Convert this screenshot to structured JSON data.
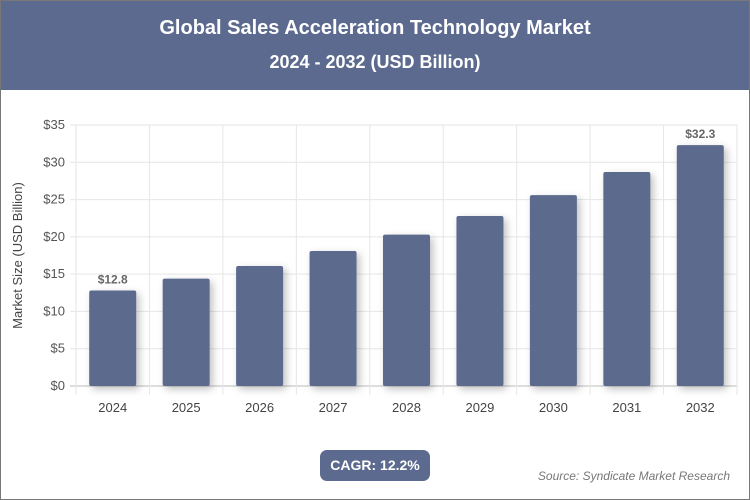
{
  "header": {
    "title": "Global Sales Acceleration Technology Market",
    "subtitle": "2024 - 2032 (USD Billion)"
  },
  "chart_data": {
    "type": "bar",
    "categories": [
      "2024",
      "2025",
      "2026",
      "2027",
      "2028",
      "2029",
      "2030",
      "2031",
      "2032"
    ],
    "values": [
      12.8,
      14.4,
      16.1,
      18.1,
      20.3,
      22.8,
      25.6,
      28.7,
      32.3
    ],
    "data_labels": {
      "0": "$12.8",
      "8": "$32.3"
    },
    "ylabel": "Market Size (USD Billion)",
    "xlabel": "",
    "ylim": [
      0,
      35
    ],
    "yticks": [
      "$0",
      "$5",
      "$10",
      "$15",
      "$20",
      "$25",
      "$30",
      "$35"
    ],
    "grid": true,
    "bar_color": "#5b6a8e"
  },
  "footer": {
    "cagr": "CAGR: 12.2%",
    "source": "Source: Syndicate Market Research"
  }
}
